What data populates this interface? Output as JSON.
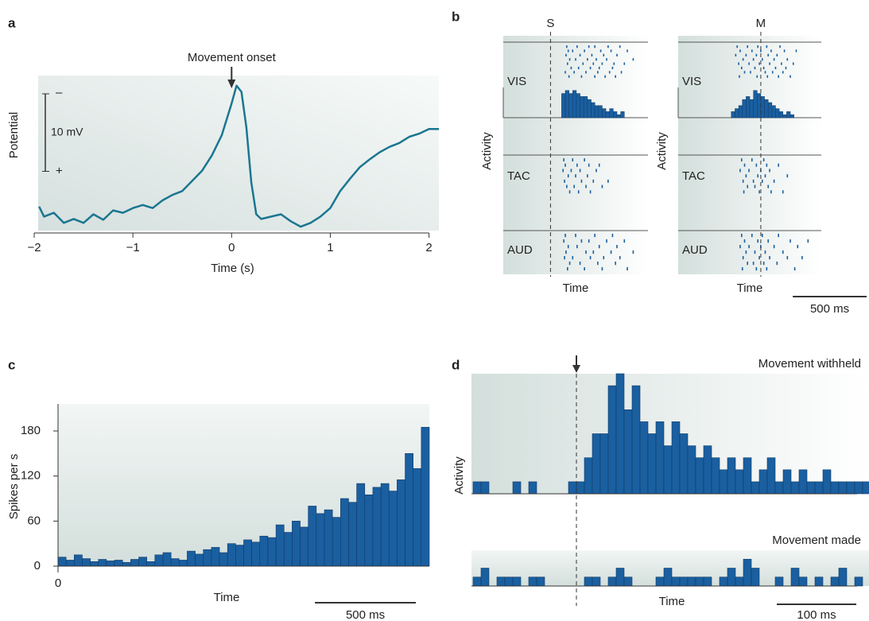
{
  "chart_data": [
    {
      "label": "a",
      "type": "line",
      "ylabel": "Potential",
      "xlabel": "Time (s)",
      "color": "#1b7690",
      "annotation": {
        "text": "Movement onset",
        "x": 0
      },
      "x": [
        -1.95,
        -1.9,
        -1.8,
        -1.7,
        -1.6,
        -1.5,
        -1.4,
        -1.3,
        -1.2,
        -1.1,
        -1.0,
        -0.9,
        -0.8,
        -0.7,
        -0.6,
        -0.5,
        -0.4,
        -0.3,
        -0.2,
        -0.1,
        0,
        0.05,
        0.1,
        0.15,
        0.2,
        0.25,
        0.3,
        0.4,
        0.5,
        0.6,
        0.7,
        0.8,
        0.9,
        1.0,
        1.1,
        1.2,
        1.3,
        1.4,
        1.5,
        1.6,
        1.7,
        1.8,
        1.9,
        2.0,
        2.1
      ],
      "values": [
        3.1,
        1.8,
        2.3,
        1.0,
        1.5,
        1.0,
        2.1,
        1.4,
        2.6,
        2.3,
        2.9,
        3.3,
        2.9,
        3.9,
        4.6,
        5.1,
        6.4,
        7.7,
        9.7,
        12.3,
        16.4,
        18.7,
        17.9,
        13.3,
        6.2,
        2.1,
        1.5,
        1.8,
        2.1,
        1.2,
        0.5,
        1.0,
        1.8,
        2.9,
        5.1,
        6.7,
        8.2,
        9.2,
        10.1,
        10.8,
        11.3,
        12.1,
        12.5,
        13.1,
        13.1
      ],
      "xlim": [
        -2,
        2.1
      ],
      "xticks": [
        {
          "value": -2,
          "label": "−2"
        },
        {
          "value": -1,
          "label": "−1"
        },
        0,
        1,
        2
      ],
      "ylim": [
        0,
        20
      ],
      "scale_bar": {
        "value": 10,
        "label": "10 mV",
        "top": "–",
        "bottom": "+"
      }
    },
    {
      "label": "b",
      "type": "raster",
      "ylabel": "Activity",
      "xlabel": "Time",
      "color": "#1a5fa0",
      "rows": [
        "VIS",
        "TAC",
        "AUD"
      ],
      "scale_bar": {
        "value": 500,
        "label": "500 ms"
      },
      "panels": [
        {
          "marker": {
            "label": "S",
            "x": 0
          },
          "xlim": [
            -320,
            660
          ],
          "rasters": [
            [
              [
                110,
                180,
                260,
                300,
                390,
                470
              ],
              [
                120,
                150,
                230,
                340,
                410,
                520
              ],
              [
                105,
                200,
                280,
                360,
                450
              ],
              [
                130,
                170,
                250,
                310,
                380,
                560
              ],
              [
                115,
                220,
                290,
                350,
                430,
                500
              ],
              [
                140,
                190,
                270,
                330,
                420
              ],
              [
                100,
                160,
                240,
                320,
                400,
                480
              ],
              [
                125,
                210,
                300,
                370,
                440
              ]
            ],
            [
              [
                90,
                150,
                230
              ],
              [
                100,
                180,
                260,
                330
              ],
              [
                85,
                140,
                200,
                310
              ],
              [
                120,
                170,
                250
              ],
              [
                95,
                210,
                290,
                390
              ],
              [
                110,
                160,
                240,
                350
              ],
              [
                130,
                190,
                270
              ]
            ],
            [
              [
                100,
                170,
                300,
                420
              ],
              [
                90,
                210,
                260,
                380,
                500
              ],
              [
                120,
                180,
                330,
                450
              ],
              [
                105,
                240,
                290,
                410,
                560
              ],
              [
                95,
                150,
                270,
                360,
                470
              ],
              [
                130,
                200,
                320,
                440
              ],
              [
                115,
                230,
                350,
                520
              ]
            ]
          ],
          "hist": {
            "bins": [
              75,
              100,
              125,
              150,
              175,
              200,
              225,
              250,
              275,
              300,
              325,
              350,
              375,
              400,
              425,
              450,
              475,
              500
            ],
            "values": [
              8,
              9,
              8,
              9,
              8,
              7,
              7,
              6,
              5,
              4,
              4,
              3,
              2,
              3,
              2,
              1,
              2
            ],
            "ylim": [
              0,
              10
            ]
          }
        },
        {
          "marker": {
            "label": "M",
            "x": 0
          },
          "xlim": [
            -560,
            410
          ],
          "rasters": [
            [
              [
                -160,
                -90,
                -20,
                40,
                130
              ],
              [
                -140,
                -60,
                0,
                70,
                160,
                240
              ],
              [
                -170,
                -100,
                -30,
                50,
                110
              ],
              [
                -120,
                -50,
                10,
                90,
                180
              ],
              [
                -150,
                -80,
                -10,
                60,
                140,
                220
              ],
              [
                -130,
                -40,
                20,
                100,
                170
              ],
              [
                -110,
                -70,
                30,
                80,
                150
              ],
              [
                -145,
                -25,
                45,
                120,
                200
              ]
            ],
            [
              [
                -130,
                -60,
                20
              ],
              [
                -110,
                -30,
                40,
                120
              ],
              [
                -140,
                -80,
                0,
                60
              ],
              [
                -100,
                -20,
                30,
                180
              ],
              [
                -120,
                -50,
                10,
                90
              ],
              [
                -90,
                -40,
                50
              ],
              [
                -115,
                -10,
                70,
                150
              ]
            ],
            [
              [
                -130,
                -60,
                10,
                120
              ],
              [
                -110,
                -20,
                50,
                200,
                320
              ],
              [
                -140,
                -80,
                0,
                90,
                250
              ],
              [
                -100,
                -40,
                30,
                150
              ],
              [
                -120,
                -10,
                60,
                180,
                280
              ],
              [
                -90,
                -50,
                20,
                110
              ],
              [
                -125,
                -30,
                40,
                230
              ]
            ]
          ],
          "hist": {
            "bins": [
              -200,
              -175,
              -150,
              -125,
              -100,
              -75,
              -50,
              -25,
              0,
              25,
              50,
              75,
              100,
              125,
              150,
              175,
              200,
              225
            ],
            "values": [
              2,
              3,
              4,
              6,
              7,
              6,
              9,
              8,
              7,
              6,
              5,
              4,
              3,
              2,
              1,
              2,
              1
            ],
            "ylim": [
              0,
              10
            ]
          }
        }
      ]
    },
    {
      "label": "c",
      "type": "histogram",
      "ylabel": "Spikes per s",
      "xlabel": "Time",
      "color": "#1a5fa0",
      "bins": [
        0,
        40,
        80,
        120,
        160,
        200,
        240,
        280,
        320,
        360,
        400,
        440,
        480,
        520,
        560,
        600,
        640,
        680,
        720,
        760,
        800,
        840,
        880,
        920,
        960,
        1000,
        1040,
        1080,
        1120,
        1160,
        1200,
        1240,
        1280,
        1320,
        1360,
        1400,
        1440,
        1480,
        1520,
        1560,
        1600,
        1640,
        1680,
        1720,
        1760,
        1800,
        1840
      ],
      "values": [
        12,
        8,
        15,
        10,
        6,
        9,
        7,
        8,
        5,
        9,
        12,
        6,
        15,
        18,
        10,
        8,
        20,
        16,
        22,
        25,
        18,
        30,
        28,
        35,
        32,
        40,
        38,
        55,
        45,
        60,
        52,
        80,
        70,
        75,
        65,
        90,
        85,
        110,
        95,
        105,
        110,
        100,
        115,
        150,
        130,
        185
      ],
      "xlim": [
        0,
        1840
      ],
      "xticks": [
        0
      ],
      "ylim": [
        0,
        216
      ],
      "yticks": [
        0,
        60,
        120,
        180
      ],
      "scale_bar": {
        "value": 500,
        "label": "500 ms"
      }
    },
    {
      "label": "d",
      "type": "histogram",
      "ylabel": "Activity",
      "xlabel": "Time",
      "color": "#1a5fa0",
      "marker": {
        "x": 0
      },
      "xlim": [
        -132,
        368
      ],
      "bins": [
        -130,
        -120,
        -110,
        -100,
        -90,
        -80,
        -70,
        -60,
        -50,
        -40,
        -30,
        -20,
        -10,
        0,
        10,
        20,
        30,
        40,
        50,
        60,
        70,
        80,
        90,
        100,
        110,
        120,
        130,
        140,
        150,
        160,
        170,
        180,
        190,
        200,
        210,
        220,
        230,
        240,
        250,
        260,
        270,
        280,
        290,
        300,
        310,
        320,
        330,
        340,
        350,
        360,
        370
      ],
      "scale_bar": {
        "value": 100,
        "label": "100 ms"
      },
      "panels": [
        {
          "title": "Movement withheld",
          "ylim": [
            0,
            10
          ],
          "values": [
            1,
            1,
            0,
            0,
            0,
            1,
            0,
            1,
            0,
            0,
            0,
            0,
            1,
            1,
            3,
            5,
            5,
            9,
            10,
            7,
            9,
            6,
            5,
            6,
            4,
            6,
            5,
            4,
            3,
            4,
            3,
            2,
            3,
            2,
            3,
            1,
            2,
            3,
            1,
            2,
            1,
            2,
            1,
            1,
            2,
            1,
            1,
            1,
            1,
            1
          ]
        },
        {
          "title": "Movement made",
          "ylim": [
            0,
            4
          ],
          "values": [
            1,
            2,
            0,
            1,
            1,
            1,
            0,
            1,
            1,
            0,
            0,
            0,
            0,
            0,
            1,
            1,
            0,
            1,
            2,
            1,
            0,
            0,
            0,
            1,
            2,
            1,
            1,
            1,
            1,
            1,
            0,
            1,
            2,
            1,
            3,
            2,
            0,
            0,
            1,
            0,
            2,
            1,
            0,
            1,
            0,
            1,
            2,
            0,
            1,
            0
          ]
        }
      ]
    }
  ]
}
